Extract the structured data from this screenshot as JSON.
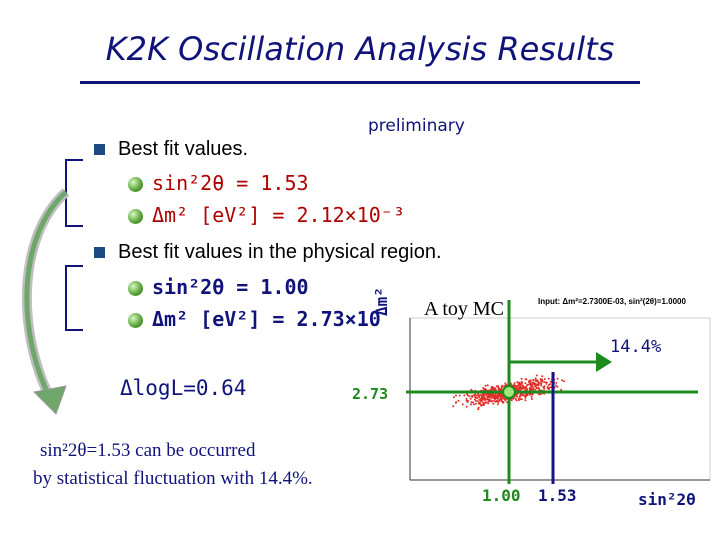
{
  "slide": {
    "title": "K2K Oscillation Analysis Results",
    "preliminary": "preliminary",
    "bullets": [
      {
        "label": "Best fit values.",
        "items": [
          {
            "text": "sin²2θ = 1.53"
          },
          {
            "text": "Δm² [eV²] = 2.12×10⁻³"
          }
        ]
      },
      {
        "label": "Best fit values in the physical region.",
        "items": [
          {
            "text": "sin²2θ = 1.00"
          },
          {
            "text": "Δm² [eV²] = 2.73×10"
          }
        ]
      }
    ],
    "delta_loglike": "ΔlogL=0.64",
    "note_line1": "sin²2θ=1.53 can be occurred",
    "note_line2": "by statistical fluctuation with 14.4%."
  },
  "plot": {
    "caption": "A toy MC",
    "header": "Input: Δm²=2.7300E-03, sin²(2θ)=1.0000",
    "percent": "14.4%",
    "y_value_label": "2.73",
    "x_tick_1": "1.00",
    "x_tick_2": "1.53",
    "x_axis_label": "sin²2θ",
    "y_axis_label": "Δm²",
    "colors": {
      "scatter": "#e0302a",
      "lines": "#1d8a1d",
      "vertical_line": "#17148a",
      "marker": "#9ee87a"
    }
  }
}
